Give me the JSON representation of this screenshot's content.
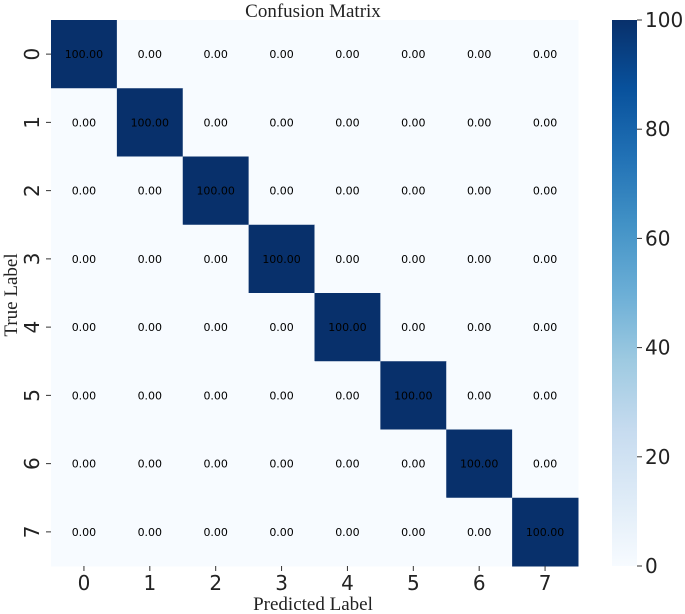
{
  "chart_data": {
    "type": "heatmap",
    "title": "Confusion Matrix",
    "xlabel": "Predicted Label",
    "ylabel": "True Label",
    "x_categories": [
      "0",
      "1",
      "2",
      "3",
      "4",
      "5",
      "6",
      "7"
    ],
    "y_categories": [
      "0",
      "1",
      "2",
      "3",
      "4",
      "5",
      "6",
      "7"
    ],
    "values": [
      [
        100,
        0,
        0,
        0,
        0,
        0,
        0,
        0
      ],
      [
        0,
        100,
        0,
        0,
        0,
        0,
        0,
        0
      ],
      [
        0,
        0,
        100,
        0,
        0,
        0,
        0,
        0
      ],
      [
        0,
        0,
        0,
        100,
        0,
        0,
        0,
        0
      ],
      [
        0,
        0,
        0,
        0,
        100,
        0,
        0,
        0
      ],
      [
        0,
        0,
        0,
        0,
        0,
        100,
        0,
        0
      ],
      [
        0,
        0,
        0,
        0,
        0,
        0,
        100,
        0
      ],
      [
        0,
        0,
        0,
        0,
        0,
        0,
        0,
        100
      ]
    ],
    "value_format": "0.00",
    "colormap": "Blues",
    "color_low": "#f7fbff",
    "color_high": "#08306b",
    "colorbar": {
      "range": [
        0,
        100
      ],
      "ticks": [
        0,
        20,
        40,
        60,
        80,
        100
      ]
    },
    "grid": false
  }
}
